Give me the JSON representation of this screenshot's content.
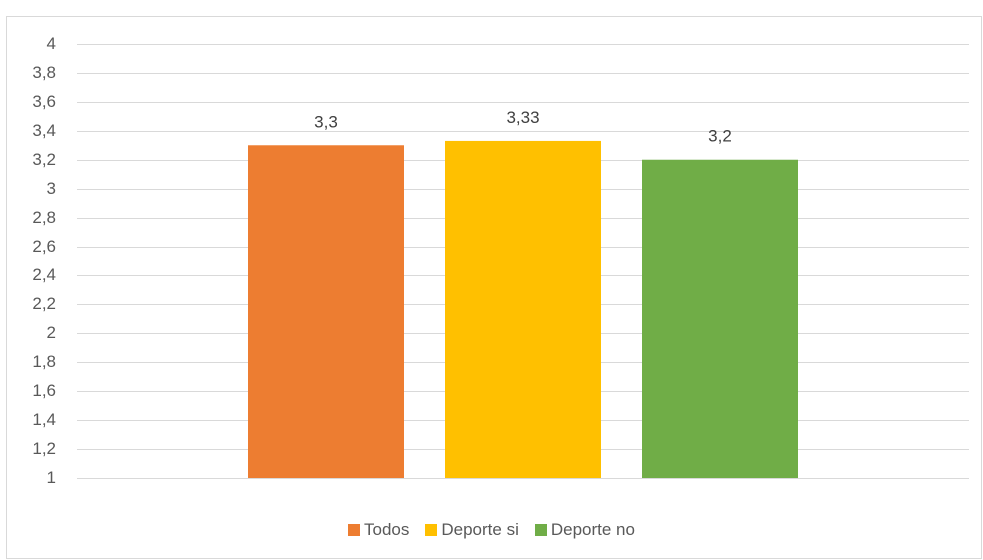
{
  "chart_data": {
    "type": "bar",
    "title": "",
    "xlabel": "",
    "ylabel": "",
    "ylim": [
      1,
      4
    ],
    "yticks": [
      "1",
      "1,2",
      "1,4",
      "1,6",
      "1,8",
      "2",
      "2,2",
      "2,4",
      "2,6",
      "2,8",
      "3",
      "3,2",
      "3,4",
      "3,6",
      "3,8",
      "4"
    ],
    "ytick_values": [
      1,
      1.2,
      1.4,
      1.6,
      1.8,
      2,
      2.2,
      2.4,
      2.6,
      2.8,
      3,
      3.2,
      3.4,
      3.6,
      3.8,
      4
    ],
    "grid": true,
    "legend_position": "bottom",
    "series": [
      {
        "name": "Todos",
        "values": [
          3.3
        ],
        "label": "3,3",
        "color": "#ED7D31"
      },
      {
        "name": "Deporte si",
        "values": [
          3.33
        ],
        "label": "3,33",
        "color": "#FFC000"
      },
      {
        "name": "Deporte no",
        "values": [
          3.2
        ],
        "label": "3,2",
        "color": "#70AD47"
      }
    ]
  }
}
